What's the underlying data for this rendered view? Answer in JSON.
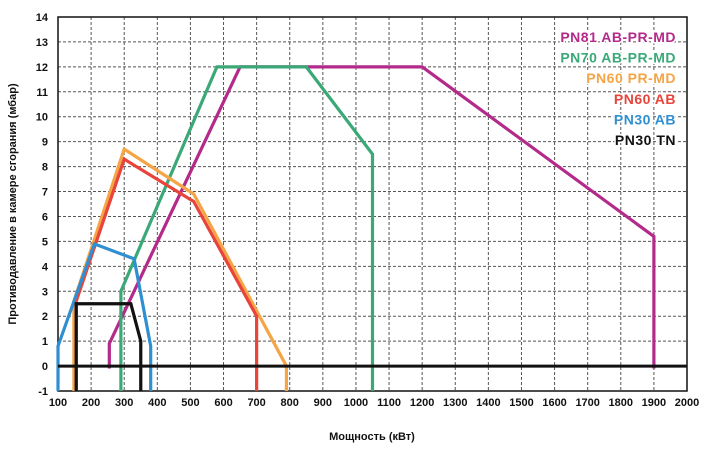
{
  "chart_data": {
    "type": "line",
    "title": "",
    "xlabel": "Мощность  (кВт)",
    "ylabel": "Противодавление в камере сгорания (мбар)",
    "xlim": [
      100,
      2000
    ],
    "ylim": [
      -1,
      14
    ],
    "x_ticks": [
      100,
      200,
      300,
      400,
      500,
      600,
      700,
      800,
      900,
      1000,
      1100,
      1200,
      1300,
      1400,
      1500,
      1600,
      1700,
      1800,
      1900,
      2000
    ],
    "y_ticks": [
      -1,
      0,
      1,
      2,
      3,
      4,
      5,
      6,
      7,
      8,
      9,
      10,
      11,
      12,
      13,
      14
    ],
    "grid": true,
    "legend_position": "top-right",
    "series": [
      {
        "name": "PN81 AB-PR-MD",
        "color": "#b42a8a",
        "points": [
          [
            255,
            -0.1
          ],
          [
            255,
            0.9
          ],
          [
            650,
            12
          ],
          [
            1200,
            12
          ],
          [
            1900,
            5.2
          ],
          [
            1900,
            -0.1
          ]
        ]
      },
      {
        "name": "PN70 AB-PR-MD",
        "color": "#3aa877",
        "points": [
          [
            290,
            -1
          ],
          [
            290,
            3
          ],
          [
            580,
            12
          ],
          [
            850,
            12
          ],
          [
            1050,
            8.5
          ],
          [
            1050,
            -1
          ]
        ]
      },
      {
        "name": "PN60 PR-MD",
        "color": "#f5a446",
        "points": [
          [
            148,
            -1
          ],
          [
            148,
            2.6
          ],
          [
            300,
            8.7
          ],
          [
            510,
            6.9
          ],
          [
            790,
            0
          ],
          [
            790,
            -1
          ]
        ]
      },
      {
        "name": "PN60 AB",
        "color": "#e8443a",
        "points": [
          [
            155,
            -1
          ],
          [
            155,
            2.6
          ],
          [
            300,
            8.3
          ],
          [
            510,
            6.6
          ],
          [
            700,
            2
          ],
          [
            700,
            -1
          ]
        ]
      },
      {
        "name": "PN30 AB",
        "color": "#2f8fd0",
        "points": [
          [
            100,
            -1
          ],
          [
            100,
            0.8
          ],
          [
            210,
            4.9
          ],
          [
            330,
            4.3
          ],
          [
            380,
            0.8
          ],
          [
            380,
            -1
          ]
        ]
      },
      {
        "name": "PN30 TN",
        "color": "#111111",
        "points": [
          [
            155,
            -1
          ],
          [
            155,
            2.5
          ],
          [
            320,
            2.5
          ],
          [
            350,
            1
          ],
          [
            350,
            -1
          ]
        ]
      }
    ],
    "zero_line": 0
  }
}
